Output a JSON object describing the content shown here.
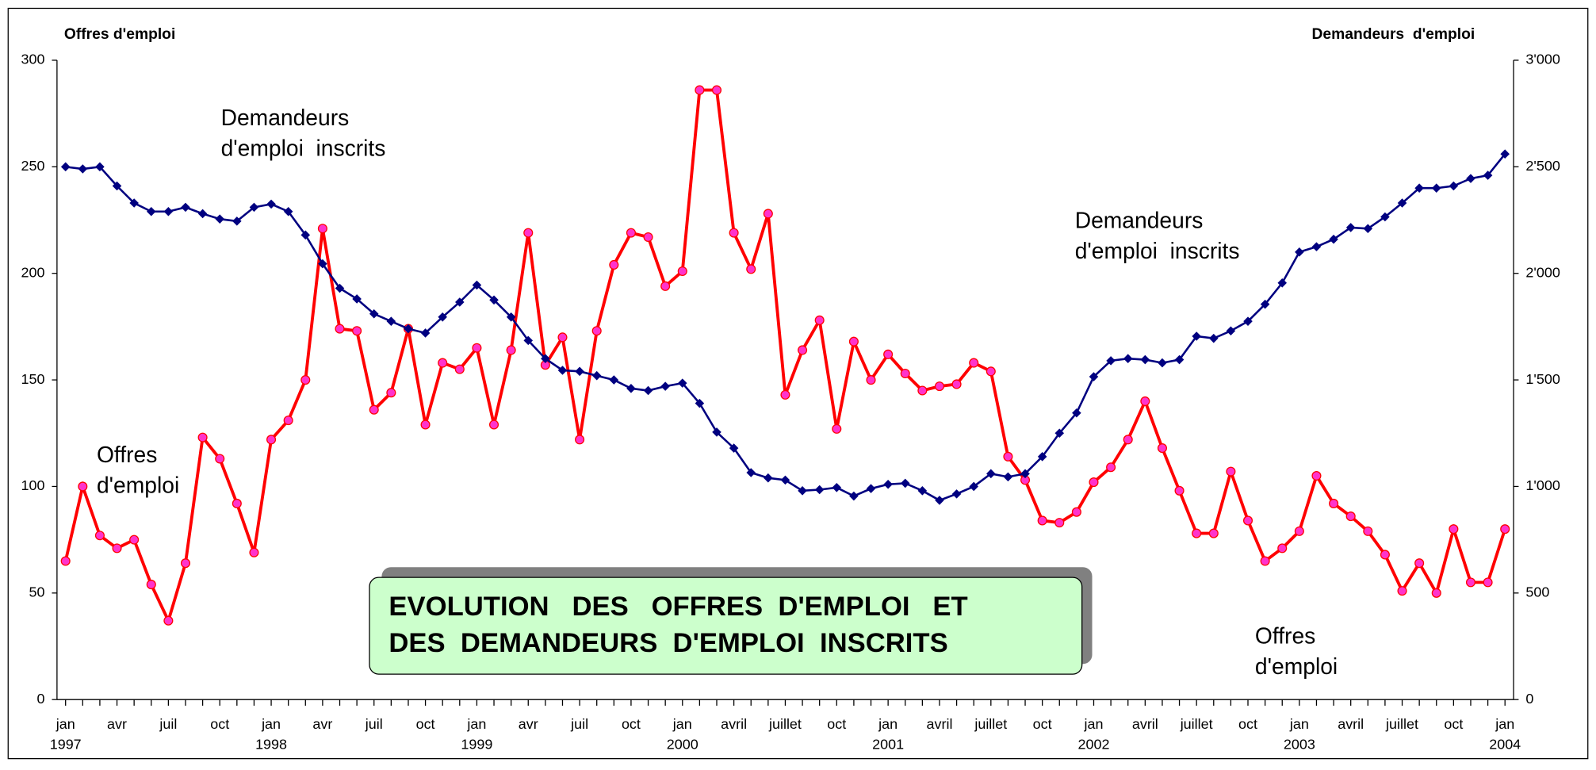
{
  "chart_data": {
    "type": "line",
    "title": [
      "EVOLUTION   DES   OFFRES  D'EMPLOI   ET",
      "DES  DEMANDEURS  D'EMPLOI  INSCRITS"
    ],
    "ylabel": "Offres d'emploi",
    "y2label": "Demandeurs  d'emploi",
    "annotations": [
      [
        "Demandeurs",
        "d'emploi  inscrits"
      ],
      [
        "Demandeurs",
        "d'emploi  inscrits"
      ],
      [
        "Offres",
        "d'emploi"
      ],
      [
        "Offres",
        "d'emploi"
      ]
    ],
    "categories": [
      "jan",
      null,
      null,
      "avr",
      null,
      null,
      "juil",
      null,
      null,
      "oct",
      null,
      null,
      "jan",
      null,
      null,
      "avr",
      null,
      null,
      "juil",
      null,
      null,
      "oct",
      null,
      null,
      "jan",
      null,
      null,
      "avr",
      null,
      null,
      "juil",
      null,
      null,
      "oct",
      null,
      null,
      "jan",
      null,
      null,
      "avril",
      null,
      null,
      "juillet",
      null,
      null,
      "oct",
      null,
      null,
      "jan",
      null,
      null,
      "avril",
      null,
      null,
      "juillet",
      null,
      null,
      "oct",
      null,
      null,
      "jan",
      null,
      null,
      "avril",
      null,
      null,
      "juillet",
      null,
      null,
      "oct",
      null,
      null,
      "jan",
      null,
      null,
      "avril",
      null,
      null,
      "juillet",
      null,
      null,
      "oct",
      null,
      null,
      "jan"
    ],
    "category_years": [
      "1997",
      null,
      null,
      null,
      null,
      null,
      null,
      null,
      null,
      null,
      null,
      null,
      "1998",
      null,
      null,
      null,
      null,
      null,
      null,
      null,
      null,
      null,
      null,
      null,
      "1999",
      null,
      null,
      null,
      null,
      null,
      null,
      null,
      null,
      null,
      null,
      null,
      "2000",
      null,
      null,
      null,
      null,
      null,
      null,
      null,
      null,
      null,
      null,
      null,
      "2001",
      null,
      null,
      null,
      null,
      null,
      null,
      null,
      null,
      null,
      null,
      null,
      "2002",
      null,
      null,
      null,
      null,
      null,
      null,
      null,
      null,
      null,
      null,
      null,
      "2003",
      null,
      null,
      null,
      null,
      null,
      null,
      null,
      null,
      null,
      null,
      null,
      "2004"
    ],
    "series": [
      {
        "name": "Offres d'emploi",
        "color": "#ff0000",
        "marker_color": "#ff33cc",
        "marker": "circle",
        "values": [
          65,
          100,
          77,
          71,
          75,
          54,
          37,
          64,
          123,
          113,
          92,
          69,
          122,
          131,
          150,
          221,
          174,
          173,
          136,
          144,
          174,
          129,
          158,
          155,
          165,
          129,
          164,
          219,
          157,
          170,
          122,
          173,
          204,
          219,
          217,
          194,
          201,
          286,
          286,
          219,
          202,
          228,
          143,
          164,
          178,
          127,
          168,
          150,
          162,
          153,
          145,
          147,
          148,
          158,
          154,
          114,
          103,
          84,
          83,
          88,
          102,
          109,
          122,
          140,
          118,
          98,
          78,
          78,
          107,
          84,
          65,
          71,
          79,
          105,
          92,
          86,
          79,
          68,
          51,
          64,
          50,
          80,
          55,
          55,
          80
        ]
      },
      {
        "name": "Demandeurs d'emploi inscrits",
        "color": "#000080",
        "marker_color": "#000080",
        "marker": "diamond",
        "axis": "y2",
        "values": [
          2500,
          2490,
          2500,
          2410,
          2330,
          2290,
          2290,
          2310,
          2280,
          2255,
          2245,
          2310,
          2325,
          2290,
          2180,
          2045,
          1930,
          1880,
          1810,
          1775,
          1740,
          1720,
          1795,
          1865,
          1945,
          1875,
          1795,
          1685,
          1600,
          1545,
          1540,
          1520,
          1500,
          1460,
          1450,
          1470,
          1485,
          1390,
          1255,
          1180,
          1065,
          1040,
          1030,
          980,
          985,
          995,
          955,
          990,
          1010,
          1015,
          980,
          935,
          965,
          1000,
          1060,
          1045,
          1060,
          1140,
          1250,
          1345,
          1515,
          1590,
          1600,
          1595,
          1580,
          1595,
          1705,
          1695,
          1730,
          1775,
          1855,
          1955,
          2100,
          2125,
          2160,
          2215,
          2210,
          2265,
          2330,
          2400,
          2400,
          2410,
          2445,
          2460,
          2560
        ]
      }
    ],
    "ylim": [
      0,
      300
    ],
    "yticks": [
      0,
      50,
      100,
      150,
      200,
      250,
      300
    ],
    "y2lim": [
      0,
      3000
    ],
    "y2ticks": [
      0,
      500,
      {
        "value": 1000,
        "label": "1'000"
      },
      {
        "value": 1500,
        "label": "1'500"
      },
      {
        "value": 2000,
        "label": "2'000"
      },
      {
        "value": 2500,
        "label": "2'500"
      },
      {
        "value": 3000,
        "label": "3'000"
      }
    ],
    "grid": false
  }
}
